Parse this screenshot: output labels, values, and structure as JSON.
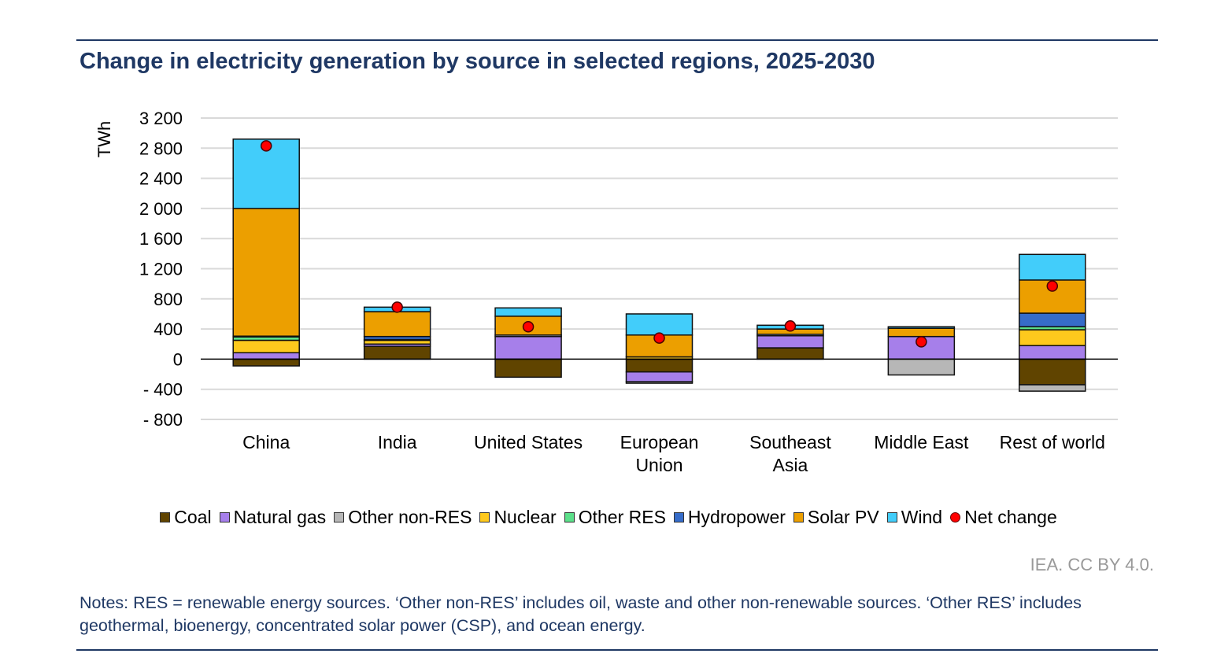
{
  "chart_data": {
    "type": "bar",
    "stacked": true,
    "title": "Change in electricity generation by source in selected regions, 2025-2030",
    "ylabel": "TWh",
    "ylim": [
      -800,
      3200
    ],
    "yticks": [
      3200,
      2800,
      2400,
      2000,
      1600,
      1200,
      800,
      400,
      0,
      -400,
      -800
    ],
    "ytick_labels": [
      "3 200",
      "2 800",
      "2 400",
      "2 000",
      "1 600",
      "1 200",
      "800",
      "400",
      "0",
      "- 400",
      "- 800"
    ],
    "categories": [
      [
        "China"
      ],
      [
        "India"
      ],
      [
        "United States"
      ],
      [
        "European",
        "Union"
      ],
      [
        "Southeast",
        "Asia"
      ],
      [
        "Middle East"
      ],
      [
        "Rest of world"
      ]
    ],
    "series": [
      {
        "name": "Coal",
        "color": "#604400",
        "values": [
          -90,
          170,
          -240,
          -170,
          150,
          0,
          -340
        ]
      },
      {
        "name": "Natural gas",
        "color": "#a67fea",
        "values": [
          85,
          30,
          300,
          -130,
          160,
          300,
          180
        ]
      },
      {
        "name": "Other non-RES",
        "color": "#b7b7b7",
        "values": [
          0,
          0,
          20,
          -20,
          20,
          -210,
          -85
        ]
      },
      {
        "name": "Nuclear",
        "color": "#fec91d",
        "values": [
          165,
          50,
          0,
          30,
          0,
          0,
          210
        ]
      },
      {
        "name": "Other RES",
        "color": "#5ce08a",
        "values": [
          45,
          10,
          0,
          0,
          0,
          0,
          40
        ]
      },
      {
        "name": "Hydropower",
        "color": "#366cc9",
        "values": [
          10,
          40,
          0,
          0,
          0,
          0,
          180
        ]
      },
      {
        "name": "Solar PV",
        "color": "#ec9f00",
        "values": [
          1695,
          330,
          250,
          290,
          70,
          110,
          440
        ]
      },
      {
        "name": "Wind",
        "color": "#42cdfa",
        "values": [
          920,
          60,
          110,
          280,
          50,
          20,
          340
        ]
      }
    ],
    "net_change": {
      "name": "Net change",
      "color": "#ff0000",
      "values": [
        2830,
        690,
        430,
        280,
        440,
        230,
        970
      ]
    },
    "legend_position": "bottom",
    "grid": true
  },
  "source": "IEA. CC BY 4.0.",
  "notes": "Notes: RES = renewable energy sources. ‘Other non-RES’ includes oil, waste and other non-renewable sources. ‘Other RES’ includes geothermal, bioenergy, concentrated solar power (CSP), and ocean energy."
}
